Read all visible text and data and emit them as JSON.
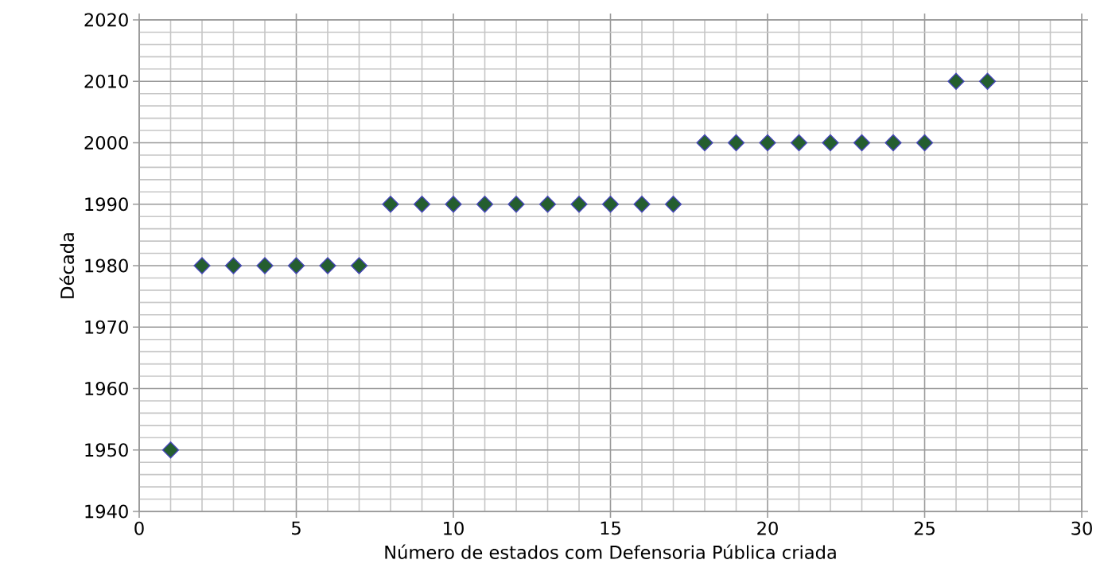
{
  "chart_data": {
    "type": "scatter",
    "xlabel": "Número de estados com Defensoria Pública criada",
    "ylabel": "Década",
    "x": [
      1,
      2,
      3,
      4,
      5,
      6,
      7,
      8,
      9,
      10,
      11,
      12,
      13,
      14,
      15,
      16,
      17,
      18,
      19,
      20,
      21,
      22,
      23,
      24,
      25,
      26,
      27
    ],
    "values": [
      1950,
      1980,
      1980,
      1980,
      1980,
      1980,
      1980,
      1990,
      1990,
      1990,
      1990,
      1990,
      1990,
      1990,
      1990,
      1990,
      1990,
      2000,
      2000,
      2000,
      2000,
      2000,
      2000,
      2000,
      2000,
      2010,
      2010
    ],
    "color": "#245e2f",
    "marker": "diamond",
    "xlim": [
      0,
      30
    ],
    "xticks": [
      0,
      5,
      10,
      15,
      20,
      25,
      30
    ],
    "ylim": [
      1940,
      2020
    ],
    "yticks": [
      1940,
      1950,
      1960,
      1970,
      1980,
      1990,
      2000,
      2010,
      2020
    ],
    "grid": true
  }
}
